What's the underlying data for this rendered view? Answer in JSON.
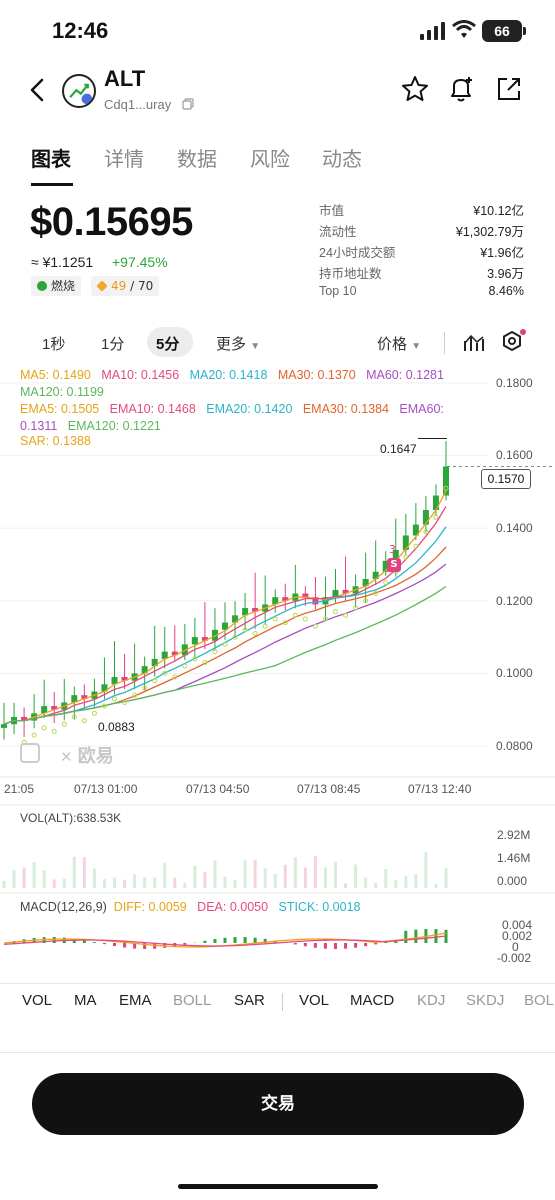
{
  "status": {
    "time": "12:46",
    "battery": "66"
  },
  "header": {
    "name": "ALT",
    "address": "Cdq1...uray"
  },
  "tabs": [
    "图表",
    "详情",
    "数据",
    "风险",
    "动态"
  ],
  "price": {
    "usd": "$0.15695",
    "cny": "≈ ¥1.1251",
    "change": "+97.45%",
    "badge_burn": "燃烧",
    "badge_score": "49",
    "badge_total": "/ 70"
  },
  "stats": [
    {
      "label": "市值",
      "value": "¥10.12亿"
    },
    {
      "label": "流动性",
      "value": "¥1,302.79万"
    },
    {
      "label": "24小时成交额",
      "value": "¥1.96亿"
    },
    {
      "label": "持币地址数",
      "value": "3.96万"
    },
    {
      "label": "Top 10",
      "value": "8.46%"
    }
  ],
  "intervals": {
    "i1": "1秒",
    "i2": "1分",
    "i3": "5分",
    "more": "更多",
    "price": "价格"
  },
  "indicators": {
    "ma5": "MA5: 0.1490",
    "ma10": "MA10: 0.1456",
    "ma20": "MA20: 0.1418",
    "ma30": "MA30: 0.1370",
    "ma60": "MA60: 0.1281",
    "ma120": "MA120: 0.1199",
    "ema5": "EMA5: 0.1505",
    "ema10": "EMA10: 0.1468",
    "ema20": "EMA20: 0.1420",
    "ema30": "EMA30: 0.1384",
    "ema60a": "EMA60:",
    "ema60b": "0.1311",
    "ema120": "EMA120: 0.1221",
    "sar": "SAR: 0.1388"
  },
  "chart_data": {
    "type": "candlestick",
    "y_axis_ticks": [
      "0.1800",
      "0.1600",
      "0.1400",
      "0.1200",
      "0.1000",
      "0.0800"
    ],
    "y_axis_values": [
      0.18,
      0.16,
      0.14,
      0.12,
      0.1,
      0.08
    ],
    "x_axis_ticks": [
      "21:05",
      "07/13 01:00",
      "07/13 04:50",
      "07/13 08:45",
      "07/13 12:40"
    ],
    "high_label": "0.1647",
    "low_label": "0.0883",
    "current_price": "0.1570",
    "marker_count": "3",
    "close_series": [
      0.086,
      0.088,
      0.087,
      0.089,
      0.091,
      0.09,
      0.092,
      0.094,
      0.093,
      0.095,
      0.097,
      0.099,
      0.098,
      0.1,
      0.102,
      0.104,
      0.106,
      0.105,
      0.108,
      0.11,
      0.109,
      0.112,
      0.114,
      0.116,
      0.118,
      0.117,
      0.119,
      0.121,
      0.12,
      0.122,
      0.121,
      0.119,
      0.121,
      0.123,
      0.122,
      0.124,
      0.126,
      0.128,
      0.131,
      0.134,
      0.138,
      0.141,
      0.145,
      0.149,
      0.157
    ],
    "volume_label": "VOL(ALT):638.53K",
    "volume_ticks": [
      "2.92M",
      "1.46M",
      "0.000"
    ],
    "macd_label": "MACD(12,26,9)",
    "diff": "DIFF: 0.0059",
    "dea": "DEA: 0.0050",
    "stick": "STICK: 0.0018",
    "macd_ticks": [
      "0.004",
      "0.002",
      "0",
      "-0.002"
    ]
  },
  "bottom_tabs": [
    "VOL",
    "MA",
    "EMA",
    "BOLL",
    "SAR",
    "VOL",
    "MACD",
    "KDJ",
    "SKDJ",
    "BOL"
  ],
  "watermark": "欧易",
  "trade_button": "交易",
  "colors": {
    "up": "#2aa63c",
    "down": "#e2417f",
    "ma5": "#e8a317",
    "ma10": "#e44a7c",
    "ma20": "#2bb4c9",
    "ma30": "#e4622c",
    "ma60": "#a64fc2",
    "ma120": "#5cb85c"
  }
}
